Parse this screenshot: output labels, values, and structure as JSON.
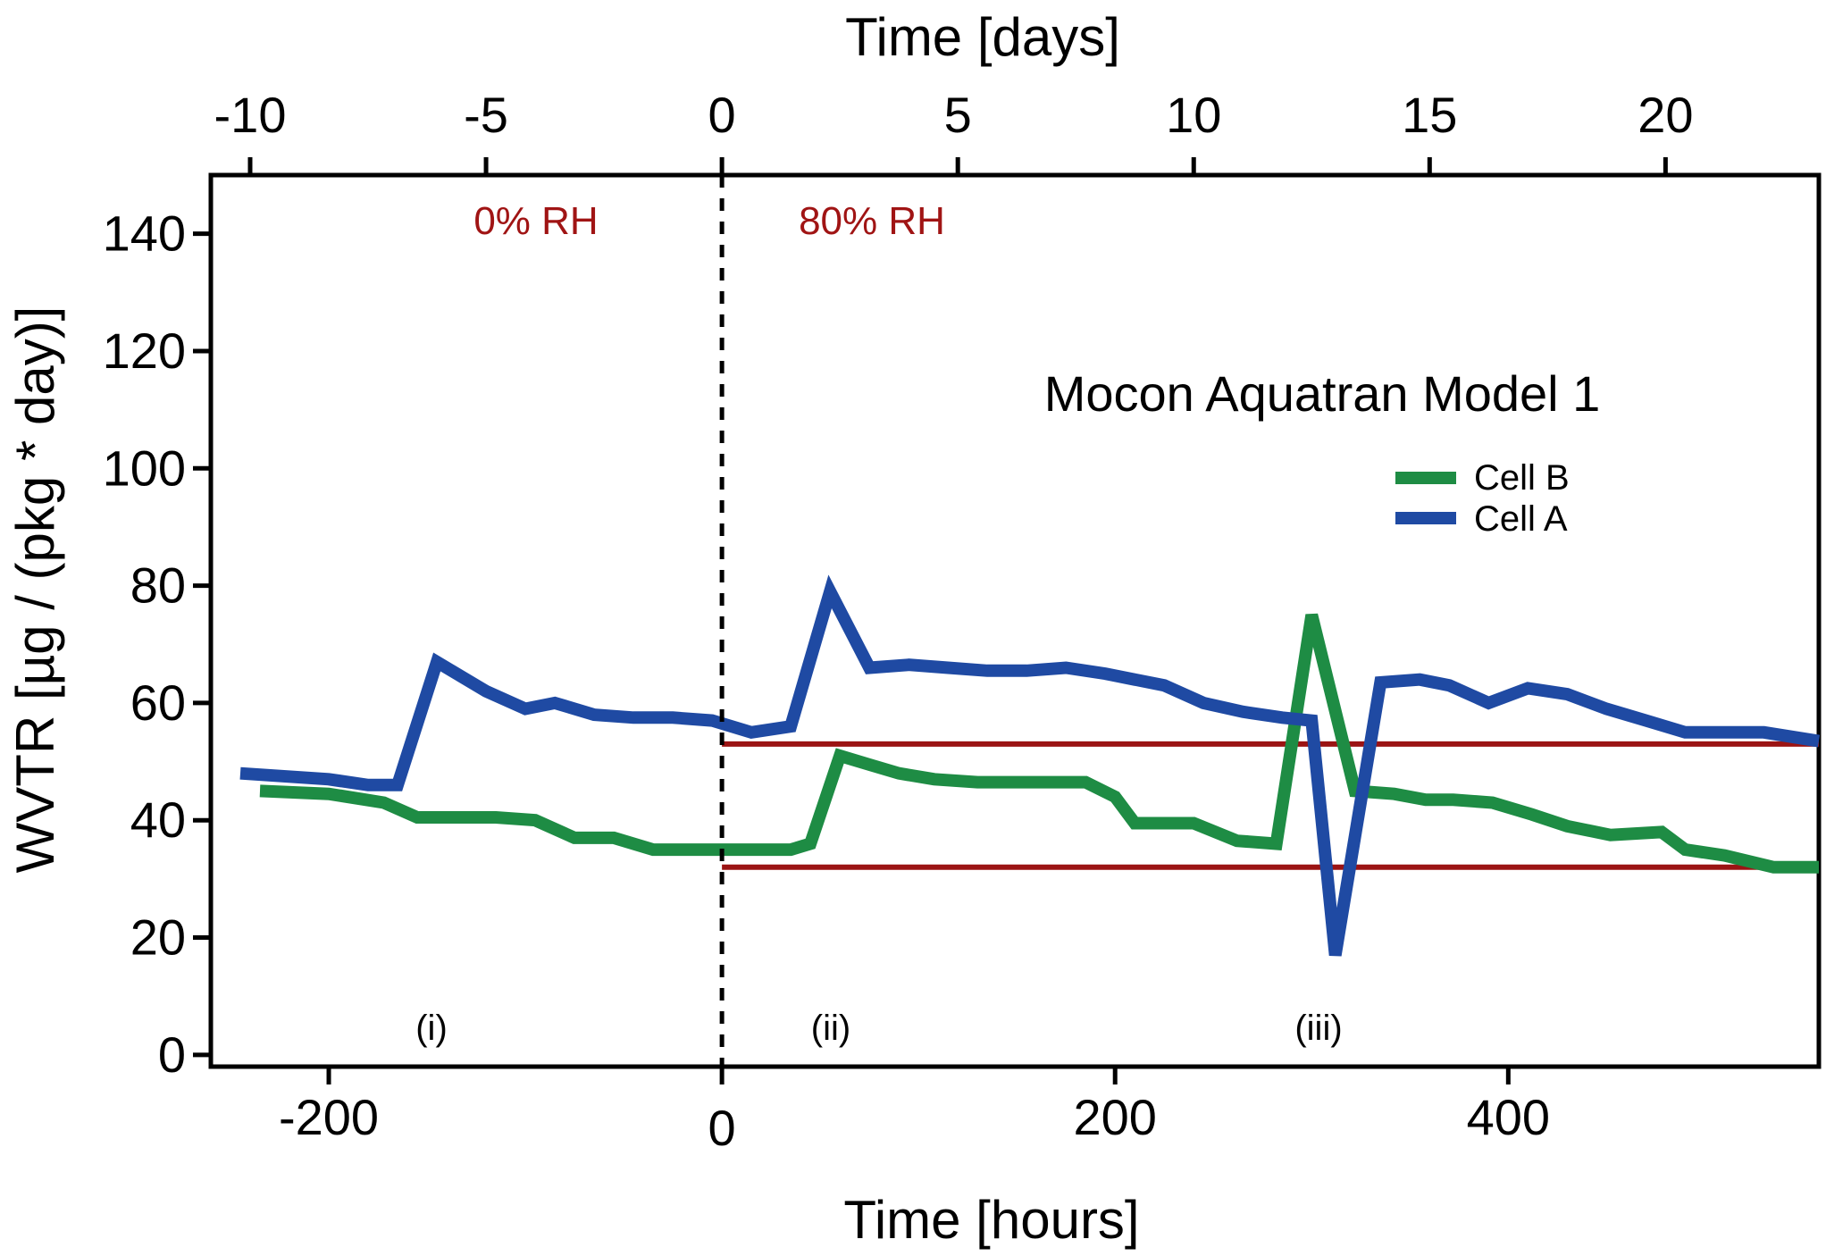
{
  "chart_data": {
    "type": "line",
    "title": "Mocon Aquatran Model 1",
    "xlabel": "Time [hours]",
    "x2label": "Time [days]",
    "ylabel": "WVTR [µg / (pkg * day)]",
    "xlim": [
      -260,
      558
    ],
    "ylim": [
      -2,
      150
    ],
    "x_ticks": [
      -200,
      0,
      200,
      400
    ],
    "x_tick_labels": [
      "-200",
      "0",
      "200",
      "400"
    ],
    "x2_ticks": [
      -10,
      -5,
      0,
      5,
      10,
      15,
      20
    ],
    "x2_tick_labels": [
      "-10",
      "-5",
      "0",
      "5",
      "10",
      "15",
      "20"
    ],
    "y_ticks": [
      0,
      20,
      40,
      60,
      80,
      100,
      120,
      140
    ],
    "y_tick_labels": [
      "0",
      "20",
      "40",
      "60",
      "80",
      "100",
      "120",
      "140"
    ],
    "grid": false,
    "legend": {
      "position": "upper-right",
      "entries": [
        "Cell B",
        "Cell A"
      ]
    },
    "colors": {
      "cell_b": "#1e8c44",
      "cell_a": "#1f4aa3",
      "reference": "#9b1414",
      "annotation": "#a01414"
    },
    "series": [
      {
        "name": "Cell B",
        "color": "#1e8c44",
        "x": [
          -235,
          -200,
          -172,
          -155,
          -135,
          -115,
          -95,
          -75,
          -55,
          -35,
          -20,
          0,
          20,
          35,
          45,
          60,
          75,
          90,
          108,
          130,
          155,
          185,
          200,
          210,
          225,
          240,
          262,
          282,
          300,
          322,
          342,
          358,
          372,
          392,
          412,
          430,
          452,
          478,
          490,
          510,
          535,
          558
        ],
        "y": [
          45,
          44.5,
          43,
          40.5,
          40.5,
          40.5,
          40,
          37,
          37,
          35,
          35,
          35,
          35,
          35,
          36,
          51,
          49.5,
          48,
          47,
          46.5,
          46.5,
          46.5,
          44,
          39.5,
          39.5,
          39.5,
          36.5,
          36,
          75,
          45,
          44.5,
          43.5,
          43.5,
          43,
          41,
          39,
          37.5,
          38,
          35,
          34,
          32,
          32
        ]
      },
      {
        "name": "Cell A",
        "color": "#1f4aa3",
        "x": [
          -245,
          -200,
          -180,
          -165,
          -145,
          -120,
          -100,
          -85,
          -65,
          -45,
          -25,
          -5,
          15,
          35,
          55,
          75,
          95,
          115,
          135,
          155,
          175,
          195,
          210,
          225,
          245,
          265,
          285,
          300,
          312,
          335,
          355,
          370,
          390,
          410,
          430,
          450,
          470,
          490,
          510,
          530,
          558
        ],
        "y": [
          48,
          47,
          46,
          46,
          67,
          62,
          59,
          60,
          58,
          57.5,
          57.5,
          57,
          55,
          56,
          79,
          66,
          66.5,
          66,
          65.5,
          65.5,
          66,
          65,
          64,
          63,
          60,
          58.5,
          57.5,
          57,
          17,
          63.5,
          64,
          63,
          60,
          62.5,
          61.5,
          59,
          57,
          55,
          55,
          55,
          53.5
        ]
      }
    ],
    "reference_lines": [
      {
        "y": 53,
        "x_start": 0,
        "x_end": 558
      },
      {
        "y": 32,
        "x_start": 0,
        "x_end": 558
      }
    ],
    "vertical_marker": {
      "x": 0,
      "style": "dashed"
    },
    "annotations": {
      "rh_left": "0% RH",
      "rh_right": "80% RH",
      "marker_i": "(i)",
      "marker_ii": "(ii)",
      "marker_iii": "(iii)"
    }
  }
}
